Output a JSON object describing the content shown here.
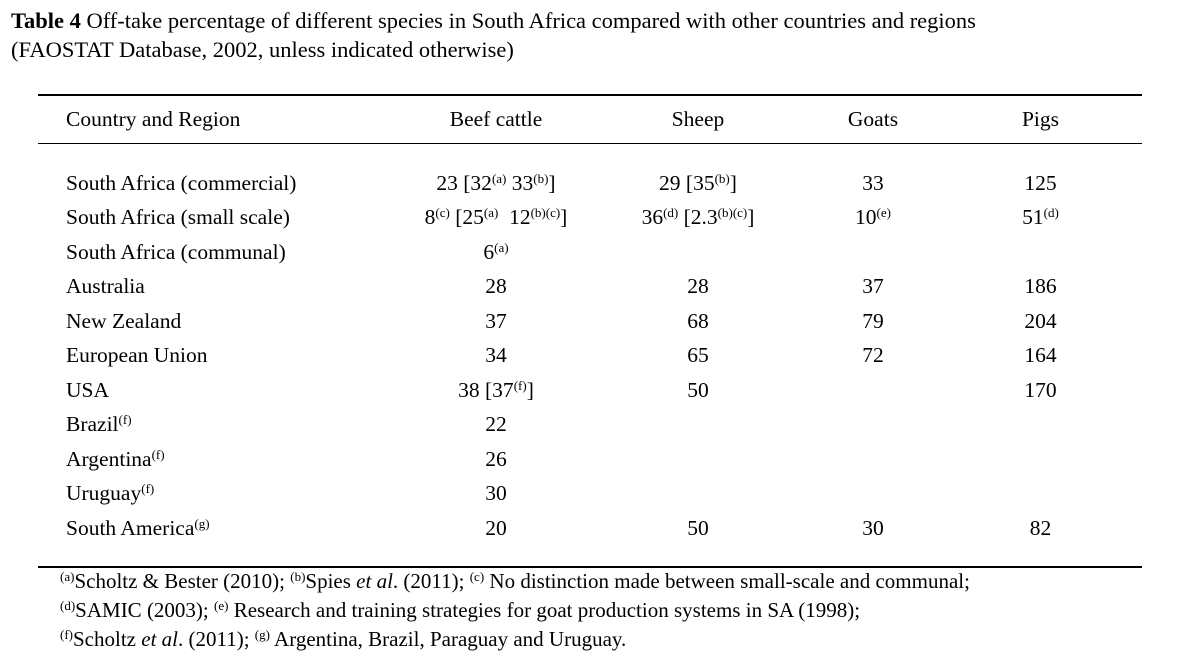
{
  "caption": {
    "label": "Table 4",
    "text": " Off-take percentage of different species in South Africa compared with other countries and regions",
    "line2": "(FAOSTAT Database, 2002, unless indicated otherwise)"
  },
  "table": {
    "headers": [
      "Country and Region",
      "Beef cattle",
      "Sheep",
      "Goats",
      "Pigs"
    ],
    "rows": [
      {
        "country": "South Africa (commercial)",
        "beef": {
          "a": "23 [32",
          "s1": "(a)",
          "b": " 33",
          "s2": "(b)",
          "c": "]"
        },
        "sheep": {
          "a": "29 [35",
          "s1": "(b)",
          "b": "]"
        },
        "goats": "33",
        "pigs": "125"
      },
      {
        "country": "South Africa (small scale)",
        "beef": {
          "a": "8",
          "s1": "(c)",
          "b": " [25",
          "s2": "(a)",
          "c": "  12",
          "s3": "(b)(c)",
          "d": "]"
        },
        "sheep": {
          "a": "36",
          "s1": "(d)",
          "b": " [2.3",
          "s2": "(b)(c)",
          "c": "]"
        },
        "goats": {
          "a": "10",
          "s1": "(e)"
        },
        "pigs": {
          "a": "51",
          "s1": "(d)"
        }
      },
      {
        "country": "South Africa (communal)",
        "beef": {
          "a": "6",
          "s1": "(a)"
        },
        "sheep": "",
        "goats": "",
        "pigs": ""
      },
      {
        "country": "Australia",
        "beef": "28",
        "sheep": "28",
        "goats": "37",
        "pigs": "186"
      },
      {
        "country": "New Zealand",
        "beef": "37",
        "sheep": "68",
        "goats": "79",
        "pigs": "204"
      },
      {
        "country": "European Union",
        "beef": "34",
        "sheep": "65",
        "goats": "72",
        "pigs": "164"
      },
      {
        "country": "USA",
        "beef": {
          "a": "38 [37",
          "s1": "(f)",
          "b": "]"
        },
        "sheep": "50",
        "goats": "",
        "pigs": "170"
      },
      {
        "country": "Brazil",
        "country_sup": "(f)",
        "beef": "22",
        "sheep": "",
        "goats": "",
        "pigs": ""
      },
      {
        "country": "Argentina",
        "country_sup": "(f)",
        "beef": "26",
        "sheep": "",
        "goats": "",
        "pigs": ""
      },
      {
        "country": "Uruguay",
        "country_sup": "(f)",
        "beef": "30",
        "sheep": "",
        "goats": "",
        "pigs": ""
      },
      {
        "country": "South America",
        "country_sup": "(g)",
        "beef": "20",
        "sheep": "50",
        "goats": "30",
        "pigs": "82"
      }
    ]
  },
  "footnotes": {
    "line1": {
      "s1": "(a)",
      "t1": "Scholtz & Bester (2010); ",
      "s2": "(b)",
      "t2": "Spies ",
      "i2": "et al",
      "t2b": ". (2011); ",
      "s3": "(c)",
      "t3": " No distinction made between small-scale and communal;"
    },
    "line2": {
      "s1": "(d)",
      "t1": "SAMIC (2003); ",
      "s2": "(e)",
      "t2": " Research and training strategies for goat production systems in SA (1998);"
    },
    "line3": {
      "s1": "(f)",
      "t1": "Scholtz ",
      "i1": "et al",
      "t1b": ". (2011); ",
      "s2": "(g)",
      "t2": " Argentina, Brazil, Paraguay and Uruguay."
    }
  }
}
